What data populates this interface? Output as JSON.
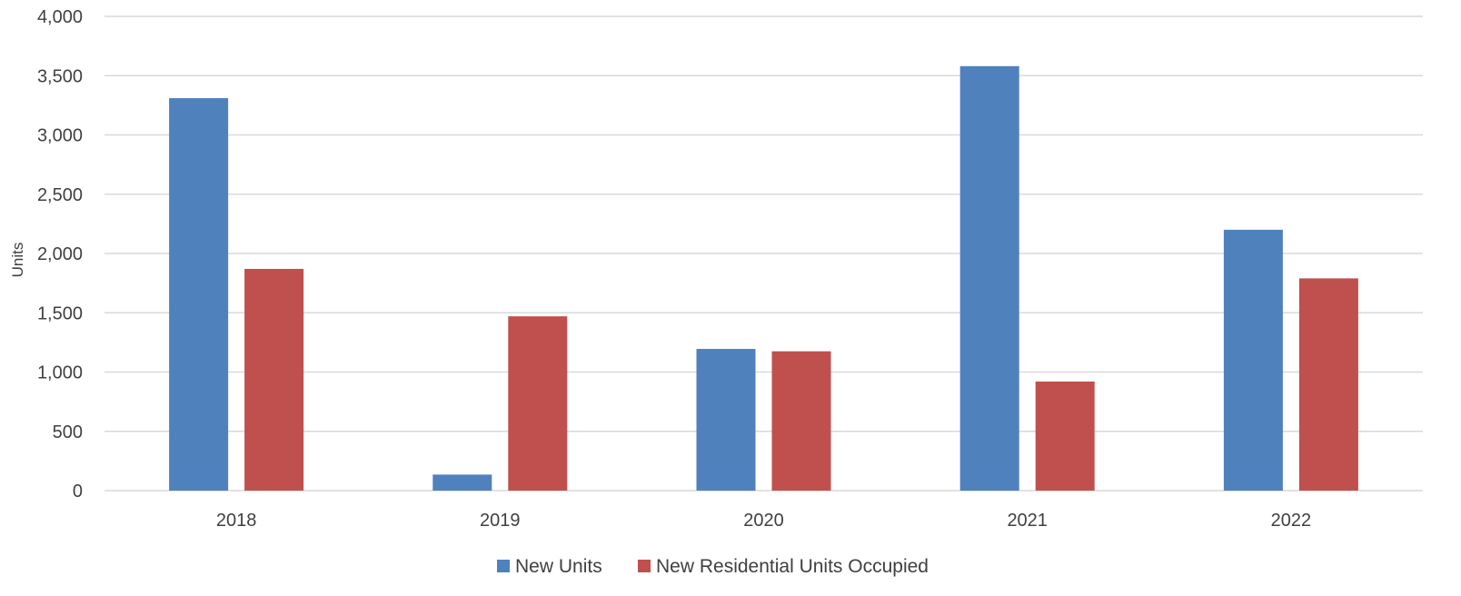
{
  "chart_data": {
    "type": "bar",
    "title": "",
    "xlabel": "",
    "ylabel": "Units",
    "categories": [
      "2018",
      "2019",
      "2020",
      "2021",
      "2022"
    ],
    "series": [
      {
        "name": "New Units",
        "color": "#4F81BD",
        "values": [
          3310,
          135,
          1195,
          3580,
          2200
        ]
      },
      {
        "name": "New Residential Units Occupied",
        "color": "#C0504D",
        "values": [
          1870,
          1470,
          1175,
          920,
          1790
        ]
      }
    ],
    "ylim": [
      0,
      4000
    ],
    "yticks": [
      0,
      500,
      1000,
      1500,
      2000,
      2500,
      3000,
      3500,
      4000
    ],
    "ytick_labels": [
      "0",
      "500",
      "1,000",
      "1,500",
      "2,000",
      "2,500",
      "3,000",
      "3,500",
      "4,000"
    ],
    "grid": true,
    "legend_position": "bottom-center"
  }
}
